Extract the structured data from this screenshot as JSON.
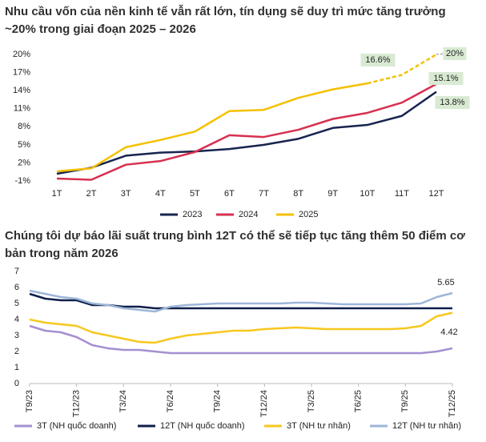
{
  "chart_data": [
    {
      "type": "line",
      "title": "Nhu cầu vốn của nền kinh tế vẫn rất lớn, tín dụng sẽ duy trì mức tăng trưởng ~20% trong giai đoạn 2025 – 2026",
      "categories": [
        "1T",
        "2T",
        "3T",
        "4T",
        "5T",
        "6T",
        "7T",
        "8T",
        "9T",
        "10T",
        "11T",
        "12T"
      ],
      "ylim": [
        -1,
        20
      ],
      "yticks": [
        {
          "value": 20,
          "label": "20%"
        },
        {
          "value": 17,
          "label": "17%"
        },
        {
          "value": 14,
          "label": "14%"
        },
        {
          "value": 11,
          "label": "11%"
        },
        {
          "value": 8,
          "label": "8%"
        },
        {
          "value": 5,
          "label": "5%"
        },
        {
          "value": 2,
          "label": "2%"
        },
        {
          "value": -1,
          "label": "-1%"
        }
      ],
      "grid": false,
      "legend": "bottom",
      "series": [
        {
          "name": "2023",
          "color": "#17244f",
          "values": [
            0.2,
            1.2,
            3.2,
            3.7,
            3.9,
            4.3,
            5.0,
            6.0,
            7.8,
            8.3,
            9.8,
            13.8
          ],
          "value_labels": [
            null,
            null,
            null,
            null,
            null,
            null,
            null,
            null,
            null,
            null,
            null,
            "13.8%"
          ]
        },
        {
          "name": "2024",
          "color": "#d7304f",
          "values": [
            -0.6,
            -0.8,
            1.7,
            2.3,
            3.8,
            6.6,
            6.3,
            7.5,
            9.3,
            10.3,
            12.0,
            15.1
          ],
          "value_labels": [
            null,
            null,
            null,
            null,
            null,
            null,
            null,
            null,
            null,
            null,
            null,
            "15.1%"
          ]
        },
        {
          "name": "2025",
          "color": "#f5c000",
          "values": [
            0.6,
            1.1,
            4.6,
            5.8,
            7.2,
            10.6,
            10.8,
            12.8,
            14.2,
            15.2,
            16.6,
            20
          ],
          "value_labels": [
            null,
            null,
            null,
            null,
            null,
            null,
            null,
            null,
            null,
            null,
            "16.6%",
            "20%"
          ],
          "dash_from": "11T"
        }
      ]
    },
    {
      "type": "line",
      "title": "Chúng tôi dự báo lãi suất trung bình 12T có thể sẽ tiếp tục tăng thêm 50 điểm cơ bản trong năm 2026",
      "categories": [
        "T9/23",
        null,
        null,
        "T12/23",
        null,
        null,
        "T3/24",
        null,
        null,
        "T6/24",
        null,
        null,
        "T9/24",
        null,
        null,
        "T12/24",
        null,
        null,
        "T3/25",
        null,
        null,
        "T6/25",
        null,
        null,
        "T9/25",
        null,
        null,
        "T12/25"
      ],
      "ylim": [
        0,
        7
      ],
      "yticks": [
        0,
        1,
        2,
        3,
        4,
        5,
        6,
        7
      ],
      "grid": false,
      "axis_line": true,
      "legend": "bottom",
      "series": [
        {
          "name": "3T (NH quốc doanh)",
          "color": "#a58fd0",
          "values": [
            3.6,
            3.3,
            3.2,
            2.9,
            2.4,
            2.2,
            2.1,
            2.1,
            2.0,
            1.9,
            1.9,
            1.9,
            1.9,
            1.9,
            1.9,
            1.9,
            1.9,
            1.9,
            1.9,
            1.9,
            1.9,
            1.9,
            1.9,
            1.9,
            1.9,
            1.9,
            2.0,
            2.2
          ]
        },
        {
          "name": "12T (NH quốc doanh)",
          "color": "#0f1f4b",
          "values": [
            5.6,
            5.3,
            5.2,
            5.2,
            4.9,
            4.9,
            4.8,
            4.8,
            4.7,
            4.7,
            4.7,
            4.7,
            4.7,
            4.7,
            4.7,
            4.7,
            4.7,
            4.7,
            4.7,
            4.7,
            4.7,
            4.7,
            4.7,
            4.7,
            4.7,
            4.7,
            4.7,
            4.7
          ]
        },
        {
          "name": "3T (NH tư nhân)",
          "color": "#f7c81e",
          "values": [
            4.0,
            3.8,
            3.7,
            3.6,
            3.2,
            3.0,
            2.8,
            2.6,
            2.55,
            2.8,
            3.0,
            3.1,
            3.2,
            3.3,
            3.3,
            3.4,
            3.45,
            3.5,
            3.45,
            3.4,
            3.4,
            3.4,
            3.4,
            3.4,
            3.45,
            3.6,
            4.2,
            4.42
          ],
          "value_labels": [
            null,
            null,
            null,
            null,
            null,
            null,
            null,
            null,
            null,
            null,
            null,
            null,
            null,
            null,
            null,
            null,
            null,
            null,
            null,
            null,
            null,
            null,
            null,
            null,
            null,
            null,
            null,
            "4.42"
          ]
        },
        {
          "name": "12T (NH tư nhân)",
          "color": "#9db6d8",
          "values": [
            5.8,
            5.6,
            5.4,
            5.3,
            5.0,
            4.9,
            4.7,
            4.6,
            4.5,
            4.8,
            4.9,
            4.95,
            5.0,
            5.0,
            5.0,
            5.0,
            5.0,
            5.05,
            5.05,
            5.0,
            4.95,
            4.95,
            4.95,
            4.95,
            4.95,
            5.0,
            5.4,
            5.65
          ],
          "value_labels": [
            null,
            null,
            null,
            null,
            null,
            null,
            null,
            null,
            null,
            null,
            null,
            null,
            null,
            null,
            null,
            null,
            null,
            null,
            null,
            null,
            null,
            null,
            null,
            null,
            null,
            null,
            null,
            "5.65"
          ]
        }
      ]
    }
  ]
}
